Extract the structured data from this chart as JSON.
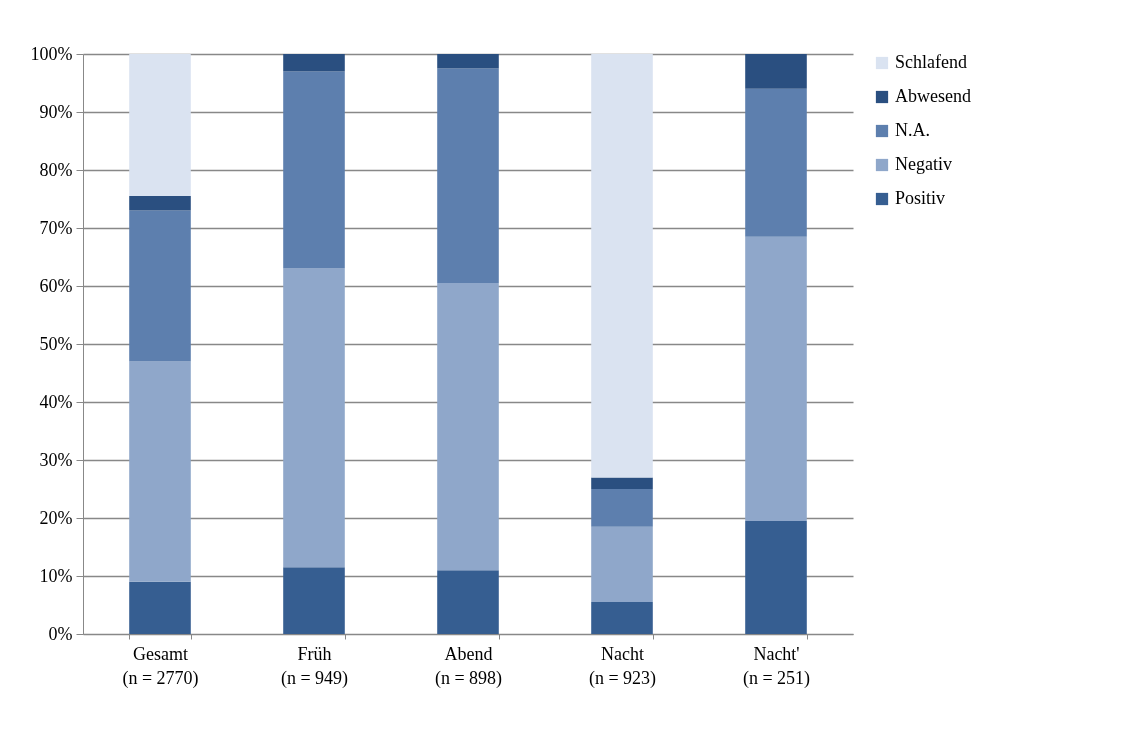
{
  "chart_data": {
    "type": "bar",
    "stacked": true,
    "categories": [
      "Gesamt\n(n = 2770)",
      "Früh\n(n = 949)",
      "Abend\n(n = 898)",
      "Nacht\n(n = 923)",
      "Nacht'\n(n = 251)"
    ],
    "series": [
      {
        "name": "Positiv",
        "color": "#365e91",
        "values": [
          9,
          11.5,
          11,
          5.5,
          19.5
        ]
      },
      {
        "name": "Negativ",
        "color": "#8fa7ca",
        "values": [
          38,
          51.5,
          49.5,
          13,
          49
        ]
      },
      {
        "name": "N.A.",
        "color": "#5d7fae",
        "values": [
          26,
          34,
          37,
          6.5,
          25.5
        ]
      },
      {
        "name": "Abwesend",
        "color": "#2a4f80",
        "values": [
          2.5,
          3,
          2.5,
          2,
          6
        ]
      },
      {
        "name": "Schlafend",
        "color": "#dae3f1",
        "values": [
          24.5,
          0,
          0,
          73,
          0
        ]
      }
    ],
    "ylim": [
      0,
      100
    ],
    "yticks": [
      {
        "value": 0,
        "label": "0%"
      },
      {
        "value": 10,
        "label": "10%"
      },
      {
        "value": 20,
        "label": "20%"
      },
      {
        "value": 30,
        "label": "30%"
      },
      {
        "value": 40,
        "label": "40%"
      },
      {
        "value": 50,
        "label": "50%"
      },
      {
        "value": 60,
        "label": "60%"
      },
      {
        "value": 70,
        "label": "70%"
      },
      {
        "value": 80,
        "label": "80%"
      },
      {
        "value": 90,
        "label": "90%"
      },
      {
        "value": 100,
        "label": "100%"
      }
    ],
    "grid": "y",
    "legend": "right"
  }
}
